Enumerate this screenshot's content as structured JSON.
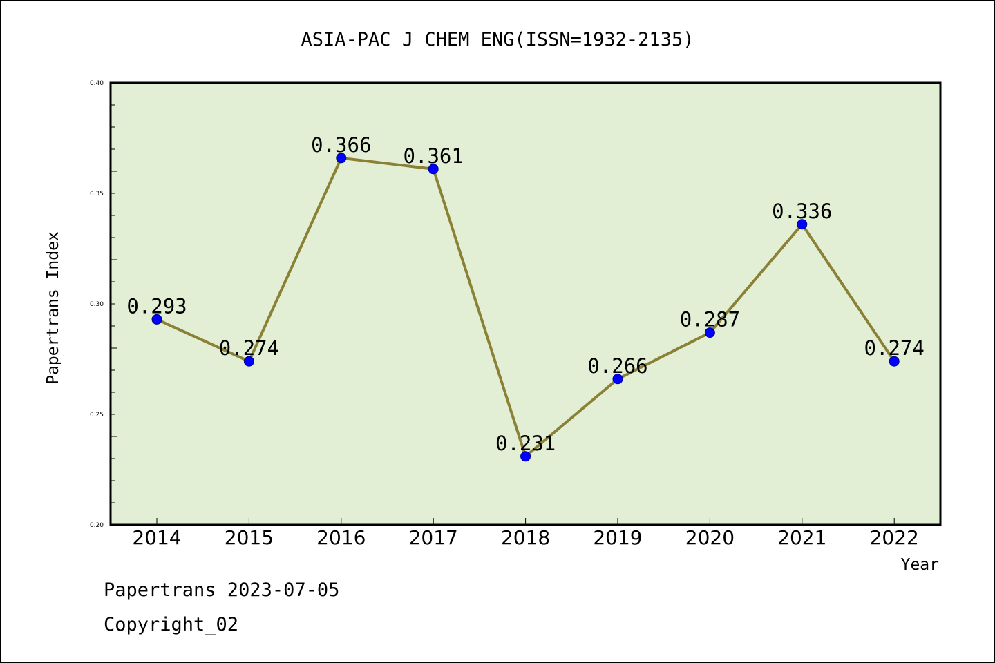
{
  "chart_data": {
    "type": "line",
    "title": "ASIA-PAC J CHEM ENG(ISSN=1932-2135)",
    "xlabel": "Year",
    "ylabel": "Papertrans Index",
    "categories": [
      "2014",
      "2015",
      "2016",
      "2017",
      "2018",
      "2019",
      "2020",
      "2021",
      "2022"
    ],
    "series": [
      {
        "values": [
          0.293,
          0.274,
          0.366,
          0.361,
          0.231,
          0.266,
          0.287,
          0.336,
          0.274
        ]
      }
    ],
    "data_labels": [
      "0.293",
      "0.274",
      "0.366",
      "0.361",
      "0.231",
      "0.266",
      "0.287",
      "0.336",
      "0.274"
    ],
    "ylim": [
      0.2,
      0.4
    ],
    "y_ticks": [
      "0.20",
      "0.25",
      "0.30",
      "0.35",
      "0.40"
    ],
    "grid": false,
    "colors": {
      "plot_background": "#e2efd4",
      "line": "#8b8136",
      "marker": "#0000ff"
    }
  },
  "footer": {
    "date_line": "Papertrans 2023-07-05",
    "copyright": "Copyright_02"
  }
}
